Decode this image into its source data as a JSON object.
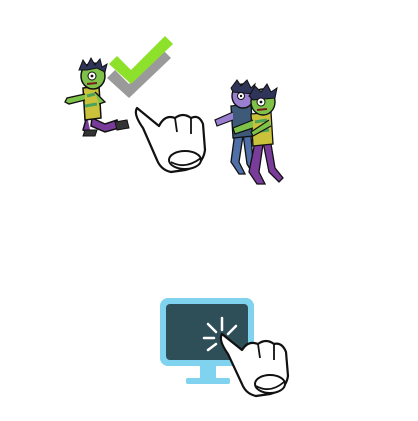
{
  "tutorial": {
    "steps": [
      {
        "id": "select-single-zombie",
        "icons": [
          "zombie-single-icon",
          "checkmark-icon",
          "tap-hand-icon",
          "zombie-pair-icon"
        ]
      },
      {
        "id": "tap-screen",
        "icons": [
          "monitor-icon",
          "tap-hand-icon"
        ]
      }
    ],
    "colors": {
      "check_green": "#8ee12a",
      "check_shadow": "#9a9a9a",
      "zombie_skin": "#7ec24a",
      "zombie_shirt": "#c9c23a",
      "zombie_pants": "#7a3c9a",
      "zombie_pants_alt": "#4f6fa8",
      "zombie_hair": "#2e3558",
      "monitor_frame": "#7fd3ee",
      "monitor_screen": "#2f4f58",
      "hand_fill": "#ffffff",
      "outline": "#111111"
    }
  }
}
